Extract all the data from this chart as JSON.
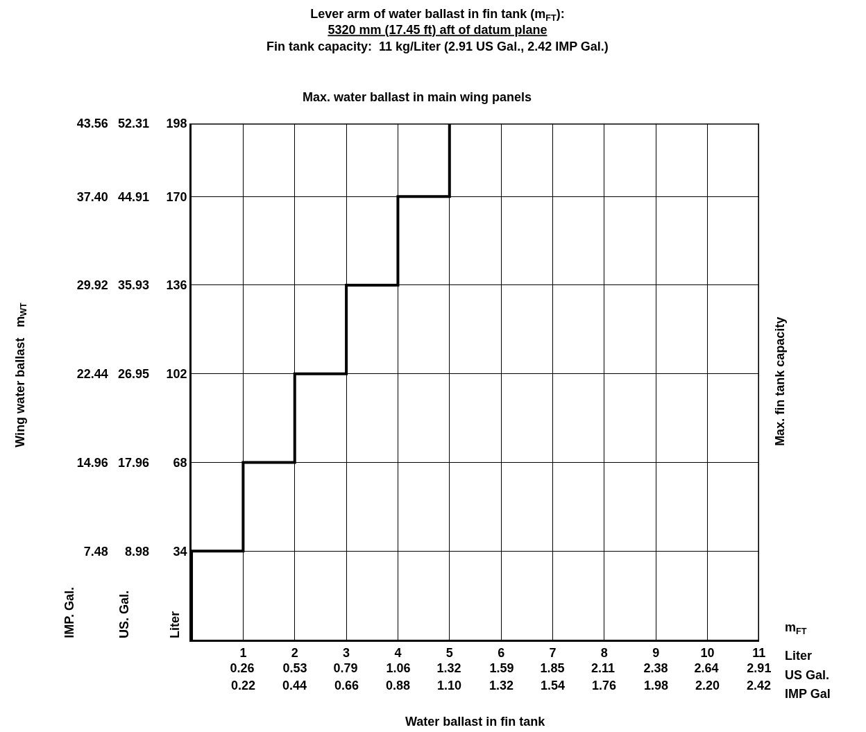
{
  "chart_data": {
    "type": "step",
    "title": "Lever arm of water ballast in fin tank (m$_{FT}$):\n5320 mm (17.45 ft) aft of datum plane",
    "subtitle": "Fin tank capacity:  11 kg/Liter (2.91 US Gal., 2.42 IMP Gal.)",
    "x": [
      0,
      0,
      1,
      2,
      3,
      4,
      5
    ],
    "series": [
      {
        "color": "#000000",
        "values": [
          0,
          34,
          68,
          102,
          136,
          170,
          198
        ]
      }
    ],
    "xlim": [
      0,
      11
    ],
    "xticks": [
      1,
      2,
      3,
      4,
      5,
      6,
      7,
      8,
      9,
      10,
      11
    ],
    "x2lim": [
      0,
      2.91
    ],
    "x2ticks": [
      0.26,
      0.53,
      0.79,
      1.06,
      1.32,
      1.59,
      1.85,
      2.11,
      2.38,
      2.64,
      2.91
    ],
    "ylim": [
      0,
      198
    ],
    "yticks": [
      34,
      68,
      102,
      136,
      170,
      198
    ],
    "y2lim": [
      0,
      52.31
    ],
    "y2ticks": [
      8.98,
      17.96,
      26.95,
      35.93,
      44.91,
      52.31
    ],
    "y3lim": [
      0,
      43.56
    ],
    "y3ticks": [
      7.48,
      14.96,
      22.44,
      29.92,
      {
        "value": 37.4,
        "label": "37.40"
      },
      43.56
    ],
    "xlabel": "Water ballast in fin tank",
    "ylabel": "Liter",
    "y2label": "US. Gal.",
    "y3label": "IMP. Gal.",
    "annotations": [
      "Wing water ballast   m$_{WT}$",
      "Liter",
      "US Gal.",
      "IMP Gal",
      "m$_{FT}$",
      "0.22",
      "0.44",
      "0.66",
      "0.88",
      "1.10",
      "1.32",
      "1.54",
      "1.76",
      "1.98",
      "2.20",
      "2.42"
    ],
    "ref_lines": [
      {
        "axis": "y",
        "value": 198,
        "label": "Max. water ballast in main wing panels",
        "color": "#000000"
      },
      {
        "axis": "x",
        "value": 11,
        "label": "Max. fin tank capacity",
        "color": "#000000"
      }
    ],
    "grid": true,
    "line_style": "solid",
    "marker": "none"
  }
}
